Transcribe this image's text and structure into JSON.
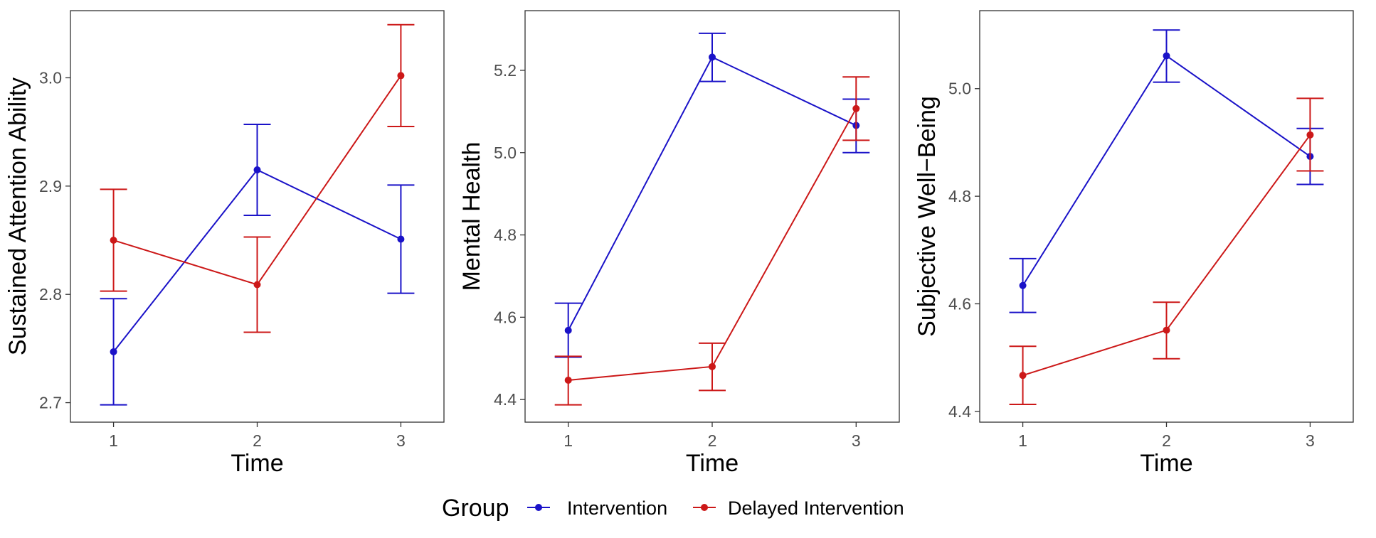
{
  "chart_data": [
    {
      "type": "line",
      "title": "",
      "xlabel": "Time",
      "ylabel": "Sustained Attention Ability",
      "x": [
        1,
        2,
        3
      ],
      "xlim": [
        0.7,
        3.3
      ],
      "ylim": [
        2.682,
        3.062
      ],
      "yticks": [
        2.7,
        2.8,
        2.9,
        3.0
      ],
      "ytick_labels": [
        "2.7",
        "2.8",
        "2.9",
        "3.0"
      ],
      "grid": false,
      "series": [
        {
          "name": "Intervention",
          "color": "#1a12c8",
          "values": [
            2.747,
            2.915,
            2.851
          ],
          "error_low": [
            2.698,
            2.873,
            2.801
          ],
          "error_high": [
            2.796,
            2.957,
            2.901
          ]
        },
        {
          "name": "Delayed Intervention",
          "color": "#cc1818",
          "values": [
            2.85,
            2.809,
            3.002
          ],
          "error_low": [
            2.803,
            2.765,
            2.955
          ],
          "error_high": [
            2.897,
            2.853,
            3.049
          ]
        }
      ]
    },
    {
      "type": "line",
      "title": "",
      "xlabel": "Time",
      "ylabel": "Mental Health",
      "x": [
        1,
        2,
        3
      ],
      "xlim": [
        0.7,
        3.3
      ],
      "ylim": [
        4.345,
        5.345
      ],
      "yticks": [
        4.4,
        4.6,
        4.8,
        5.0,
        5.2
      ],
      "ytick_labels": [
        "4.4",
        "4.6",
        "4.8",
        "5.0",
        "5.2"
      ],
      "grid": false,
      "series": [
        {
          "name": "Intervention",
          "color": "#1a12c8",
          "values": [
            4.568,
            5.232,
            5.066
          ],
          "error_low": [
            4.503,
            5.173,
            5.0
          ],
          "error_high": [
            4.634,
            5.29,
            5.13
          ]
        },
        {
          "name": "Delayed Intervention",
          "color": "#cc1818",
          "values": [
            4.447,
            4.48,
            5.107
          ],
          "error_low": [
            4.387,
            4.422,
            5.03
          ],
          "error_high": [
            4.505,
            4.537,
            5.184
          ]
        }
      ]
    },
    {
      "type": "line",
      "title": "",
      "xlabel": "Time",
      "ylabel": "Subjective Well−Being",
      "x": [
        1,
        2,
        3
      ],
      "xlim": [
        0.7,
        3.3
      ],
      "ylim": [
        4.38,
        5.145
      ],
      "yticks": [
        4.4,
        4.6,
        4.8,
        5.0
      ],
      "ytick_labels": [
        "4.4",
        "4.6",
        "4.8",
        "5.0"
      ],
      "grid": false,
      "series": [
        {
          "name": "Intervention",
          "color": "#1a12c8",
          "values": [
            4.634,
            5.061,
            4.874
          ],
          "error_low": [
            4.584,
            5.012,
            4.822
          ],
          "error_high": [
            4.684,
            5.109,
            4.926
          ]
        },
        {
          "name": "Delayed Intervention",
          "color": "#cc1818",
          "values": [
            4.467,
            4.551,
            4.914
          ],
          "error_low": [
            4.413,
            4.498,
            4.847
          ],
          "error_high": [
            4.521,
            4.603,
            4.982
          ]
        }
      ]
    }
  ],
  "legend": {
    "title": "Group",
    "position": "bottom",
    "items": [
      {
        "label": "Intervention",
        "color": "#1a12c8"
      },
      {
        "label": "Delayed Intervention",
        "color": "#cc1818"
      }
    ]
  }
}
